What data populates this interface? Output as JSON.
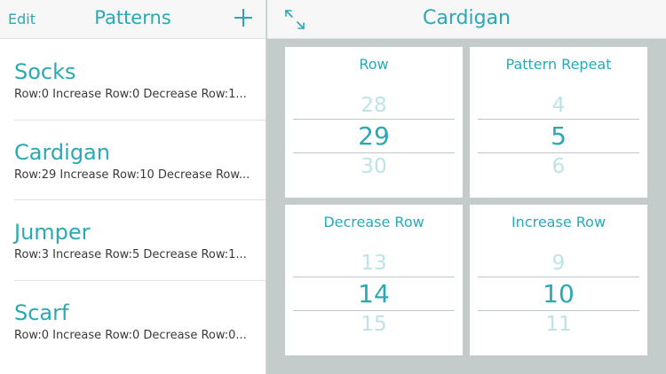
{
  "sidebar": {
    "edit_label": "Edit",
    "title": "Patterns",
    "add_icon": "plus-icon",
    "items": [
      {
        "name": "Socks",
        "detail": "Row:0 Increase Row:0 Decrease Row:1..."
      },
      {
        "name": "Cardigan",
        "detail": "Row:29 Increase Row:10 Decrease Row..."
      },
      {
        "name": "Jumper",
        "detail": "Row:3 Increase Row:5 Decrease Row:1..."
      },
      {
        "name": "Scarf",
        "detail": "Row:0 Increase Row:0 Decrease Row:0..."
      }
    ]
  },
  "main": {
    "title": "Cardigan",
    "expand_icon": "expand-arrows-icon",
    "counters": [
      {
        "label": "Row",
        "prev": "28",
        "current": "29",
        "next": "30"
      },
      {
        "label": "Pattern Repeat",
        "prev": "4",
        "current": "5",
        "next": "6"
      },
      {
        "label": "Decrease Row",
        "prev": "13",
        "current": "14",
        "next": "15"
      },
      {
        "label": "Increase Row",
        "prev": "9",
        "current": "10",
        "next": "11"
      }
    ]
  },
  "colors": {
    "accent": "#2aa9b4",
    "faded": "#bde3e6",
    "background": "#c3cbcb"
  }
}
